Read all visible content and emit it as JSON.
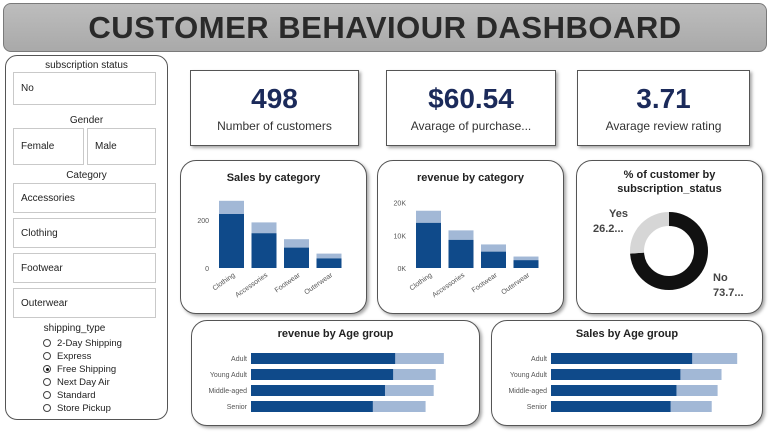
{
  "header": {
    "title": "CUSTOMER BEHAVIOUR DASHBOARD"
  },
  "slicers": {
    "subscription": {
      "title": "subscription status",
      "value": "No"
    },
    "gender": {
      "title": "Gender",
      "options": [
        "Female",
        "Male"
      ]
    },
    "category": {
      "title": "Category",
      "options": [
        "Accessories",
        "Clothing",
        "Footwear",
        "Outerwear"
      ]
    },
    "shipping": {
      "title": "shipping_type",
      "options": [
        "2-Day Shipping",
        "Express",
        "Free Shipping",
        "Next Day Air",
        "Standard",
        "Store Pickup"
      ],
      "selected": "Free Shipping"
    }
  },
  "kpis": [
    {
      "value": "498",
      "label": "Number of customers"
    },
    {
      "value": "$60.54",
      "label": "Avarage of purchase..."
    },
    {
      "value": "3.71",
      "label": "Avarage review rating"
    }
  ],
  "colors": {
    "dark": "#0f4a8a",
    "light": "#a2b8d6",
    "navy": "#1b2a5a",
    "donut_dark": "#111111",
    "donut_light": "#d6d6d6"
  },
  "chart_data": [
    {
      "type": "bar",
      "title": "Sales by category",
      "categories": [
        "Clothing",
        "Accessories",
        "Footwear",
        "Outerwear"
      ],
      "ticks": [
        "0",
        "200"
      ],
      "ylim": [
        0,
        300
      ],
      "series": [
        {
          "values": [
            280,
            190,
            120,
            60
          ]
        },
        {
          "values": [
            225,
            145,
            85,
            40
          ]
        }
      ]
    },
    {
      "type": "bar",
      "title": "revenue by category",
      "categories": [
        "Clothing",
        "Accessories",
        "Footwear",
        "Outerwear"
      ],
      "ticks": [
        "0K",
        "10K",
        "20K"
      ],
      "ylim": [
        0,
        22000
      ],
      "series": [
        {
          "values": [
            17500,
            11500,
            7200,
            3500
          ]
        },
        {
          "values": [
            13800,
            8600,
            5000,
            2400
          ]
        }
      ]
    },
    {
      "type": "pie",
      "title": "% of customer by subscription_status",
      "slices": [
        {
          "name": "Yes",
          "value": 26.2,
          "label": "26.2...",
          "color": "#d6d6d6"
        },
        {
          "name": "No",
          "value": 73.8,
          "label": "73.7...",
          "color": "#111111"
        }
      ]
    },
    {
      "type": "bar",
      "orientation": "horizontal",
      "title": "revenue by Age group",
      "categories": [
        "Adult",
        "Young Adult",
        "Middle-aged",
        "Senior"
      ],
      "xlim": [
        0,
        100
      ],
      "series": [
        {
          "values": [
            95,
            91,
            90,
            86
          ]
        },
        {
          "values": [
            71,
            70,
            66,
            60
          ]
        }
      ]
    },
    {
      "type": "bar",
      "orientation": "horizontal",
      "title": "Sales by Age group",
      "categories": [
        "Adult",
        "Young Adult",
        "Middle-aged",
        "Senior"
      ],
      "xlim": [
        0,
        100
      ],
      "series": [
        {
          "values": [
            95,
            87,
            85,
            82
          ]
        },
        {
          "values": [
            72,
            66,
            64,
            61
          ]
        }
      ]
    }
  ]
}
